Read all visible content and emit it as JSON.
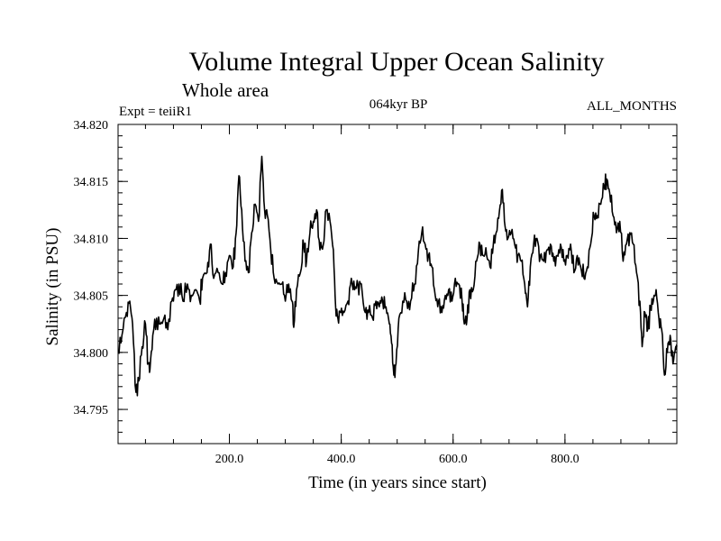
{
  "chart_data": {
    "type": "line",
    "title": "Volume Integral Upper Ocean Salinity",
    "subtitle": "Whole area",
    "experiment_label": "Expt = teiiR1",
    "period_label": "064kyr BP",
    "months_label": "ALL_MONTHS",
    "xlabel": "Time (in years since start)",
    "ylabel": "Salinity (in PSU)",
    "xlim": [
      1,
      1000
    ],
    "ylim": [
      34.792,
      34.82
    ],
    "x_ticks": [
      200,
      400,
      600,
      800
    ],
    "x_tick_labels": [
      "200.0",
      "400.0",
      "600.0",
      "800.0"
    ],
    "y_ticks": [
      34.795,
      34.8,
      34.805,
      34.81,
      34.815,
      34.82
    ],
    "y_tick_labels": [
      "34.795",
      "34.800",
      "34.805",
      "34.810",
      "34.815",
      "34.820"
    ],
    "x_minor_step": 50,
    "y_minor_step": 0.001,
    "series": [
      {
        "name": "Salinity",
        "anchors": [
          [
            1,
            34.8
          ],
          [
            8,
            34.8015
          ],
          [
            16,
            34.8035
          ],
          [
            22,
            34.8045
          ],
          [
            27,
            34.8025
          ],
          [
            33,
            34.7965
          ],
          [
            38,
            34.7975
          ],
          [
            44,
            34.8005
          ],
          [
            50,
            34.8025
          ],
          [
            55,
            34.799
          ],
          [
            58,
            34.7985
          ],
          [
            63,
            34.8015
          ],
          [
            70,
            34.803
          ],
          [
            77,
            34.8025
          ],
          [
            83,
            34.803
          ],
          [
            90,
            34.802
          ],
          [
            97,
            34.8045
          ],
          [
            103,
            34.8055
          ],
          [
            110,
            34.806
          ],
          [
            117,
            34.8045
          ],
          [
            125,
            34.806
          ],
          [
            132,
            34.805
          ],
          [
            140,
            34.8055
          ],
          [
            147,
            34.8045
          ],
          [
            152,
            34.8065
          ],
          [
            160,
            34.807
          ],
          [
            166,
            34.8095
          ],
          [
            172,
            34.8065
          ],
          [
            180,
            34.807
          ],
          [
            187,
            34.806
          ],
          [
            193,
            34.807
          ],
          [
            200,
            34.8085
          ],
          [
            207,
            34.8075
          ],
          [
            212,
            34.8105
          ],
          [
            217,
            34.8155
          ],
          [
            222,
            34.8125
          ],
          [
            228,
            34.808
          ],
          [
            234,
            34.807
          ],
          [
            240,
            34.8105
          ],
          [
            246,
            34.813
          ],
          [
            252,
            34.8115
          ],
          [
            258,
            34.8172
          ],
          [
            263,
            34.8125
          ],
          [
            268,
            34.812
          ],
          [
            274,
            34.809
          ],
          [
            280,
            34.8065
          ],
          [
            287,
            34.806
          ],
          [
            294,
            34.806
          ],
          [
            300,
            34.8045
          ],
          [
            306,
            34.806
          ],
          [
            312,
            34.8045
          ],
          [
            315,
            34.8022
          ],
          [
            320,
            34.8055
          ],
          [
            327,
            34.807
          ],
          [
            333,
            34.8095
          ],
          [
            338,
            34.808
          ],
          [
            344,
            34.8105
          ],
          [
            350,
            34.8115
          ],
          [
            356,
            34.8125
          ],
          [
            362,
            34.809
          ],
          [
            368,
            34.8095
          ],
          [
            373,
            34.8125
          ],
          [
            380,
            34.8115
          ],
          [
            386,
            34.809
          ],
          [
            390,
            34.804
          ],
          [
            394,
            34.803
          ],
          [
            399,
            34.8035
          ],
          [
            405,
            34.8035
          ],
          [
            412,
            34.8045
          ],
          [
            418,
            34.8065
          ],
          [
            424,
            34.8055
          ],
          [
            430,
            34.806
          ],
          [
            436,
            34.806
          ],
          [
            443,
            34.8035
          ],
          [
            449,
            34.8035
          ],
          [
            456,
            34.803
          ],
          [
            462,
            34.8045
          ],
          [
            468,
            34.804
          ],
          [
            474,
            34.8045
          ],
          [
            480,
            34.804
          ],
          [
            486,
            34.8025
          ],
          [
            490,
            34.8008
          ],
          [
            494,
            34.798
          ],
          [
            498,
            34.799
          ],
          [
            503,
            34.803
          ],
          [
            510,
            34.8045
          ],
          [
            517,
            34.8045
          ],
          [
            524,
            34.8045
          ],
          [
            531,
            34.806
          ],
          [
            538,
            34.809
          ],
          [
            544,
            34.8105
          ],
          [
            550,
            34.8095
          ],
          [
            556,
            34.8085
          ],
          [
            562,
            34.8075
          ],
          [
            568,
            34.805
          ],
          [
            574,
            34.8045
          ],
          [
            580,
            34.8035
          ],
          [
            586,
            34.805
          ],
          [
            592,
            34.8055
          ],
          [
            598,
            34.8045
          ],
          [
            604,
            34.8065
          ],
          [
            610,
            34.806
          ],
          [
            616,
            34.8045
          ],
          [
            620,
            34.8025
          ],
          [
            625,
            34.803
          ],
          [
            630,
            34.8055
          ],
          [
            636,
            34.8055
          ],
          [
            642,
            34.808
          ],
          [
            648,
            34.8095
          ],
          [
            654,
            34.8085
          ],
          [
            660,
            34.8085
          ],
          [
            666,
            34.8075
          ],
          [
            672,
            34.8095
          ],
          [
            677,
            34.8105
          ],
          [
            683,
            34.8125
          ],
          [
            688,
            34.8143
          ],
          [
            693,
            34.811
          ],
          [
            698,
            34.81
          ],
          [
            704,
            34.8105
          ],
          [
            710,
            34.8095
          ],
          [
            716,
            34.8085
          ],
          [
            722,
            34.808
          ],
          [
            728,
            34.806
          ],
          [
            733,
            34.804
          ],
          [
            738,
            34.8075
          ],
          [
            744,
            34.8095
          ],
          [
            750,
            34.81
          ],
          [
            756,
            34.8085
          ],
          [
            762,
            34.808
          ],
          [
            768,
            34.809
          ],
          [
            774,
            34.8095
          ],
          [
            780,
            34.808
          ],
          [
            786,
            34.8085
          ],
          [
            792,
            34.8095
          ],
          [
            798,
            34.808
          ],
          [
            804,
            34.8085
          ],
          [
            810,
            34.8095
          ],
          [
            816,
            34.807
          ],
          [
            822,
            34.8085
          ],
          [
            828,
            34.8075
          ],
          [
            834,
            34.8065
          ],
          [
            840,
            34.8075
          ],
          [
            846,
            34.8095
          ],
          [
            852,
            34.812
          ],
          [
            858,
            34.812
          ],
          [
            864,
            34.813
          ],
          [
            870,
            34.8145
          ],
          [
            875,
            34.8152
          ],
          [
            880,
            34.814
          ],
          [
            886,
            34.812
          ],
          [
            892,
            34.8105
          ],
          [
            898,
            34.8115
          ],
          [
            904,
            34.808
          ],
          [
            910,
            34.8095
          ],
          [
            916,
            34.8105
          ],
          [
            922,
            34.8095
          ],
          [
            928,
            34.807
          ],
          [
            934,
            34.8045
          ],
          [
            938,
            34.8005
          ],
          [
            943,
            34.8035
          ],
          [
            948,
            34.802
          ],
          [
            953,
            34.804
          ],
          [
            958,
            34.8045
          ],
          [
            963,
            34.8055
          ],
          [
            968,
            34.803
          ],
          [
            973,
            34.802
          ],
          [
            978,
            34.798
          ],
          [
            983,
            34.8
          ],
          [
            988,
            34.8015
          ],
          [
            993,
            34.799
          ],
          [
            998,
            34.8005
          ],
          [
            1000,
            34.8005
          ]
        ]
      }
    ]
  }
}
